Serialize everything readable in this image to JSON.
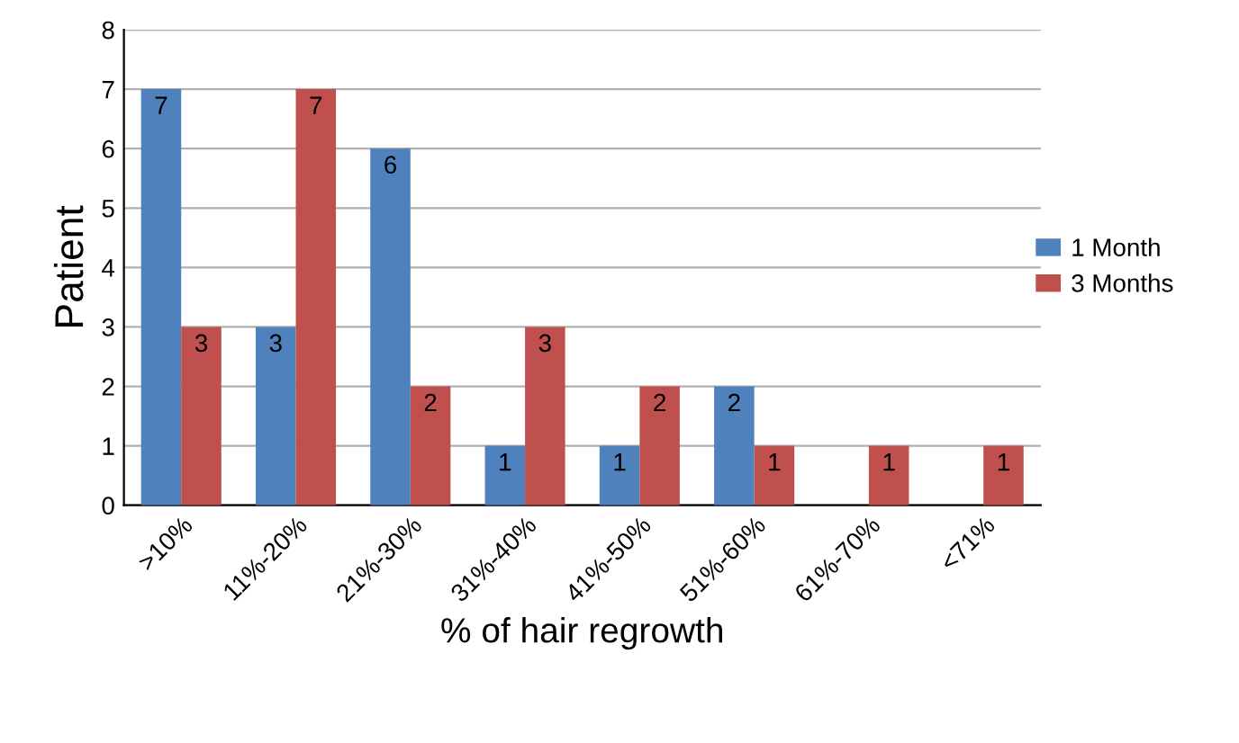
{
  "chart_data": {
    "type": "bar",
    "xlabel": "% of hair regrowth",
    "ylabel": "Patient",
    "categories": [
      ">10%",
      "11%-20%",
      "21%-30%",
      "31%-40%",
      "41%-50%",
      "51%-60%",
      "61%-70%",
      "<71%"
    ],
    "series": [
      {
        "name": "1 Month",
        "color": "#4f81bd",
        "values": [
          7,
          3,
          6,
          1,
          1,
          2,
          0,
          0
        ],
        "value_labels": [
          "7",
          "3",
          "6",
          "1",
          "1",
          "2",
          null,
          null
        ]
      },
      {
        "name": "3 Months",
        "color": "#c0504d",
        "values": [
          3,
          7,
          2,
          3,
          2,
          1,
          1,
          1
        ],
        "value_labels": [
          "3",
          "7",
          "2",
          "3",
          "2",
          "1",
          "1",
          "1"
        ]
      }
    ],
    "ylim": [
      0,
      8
    ],
    "yticks": [
      0,
      1,
      2,
      3,
      4,
      5,
      6,
      7,
      8
    ],
    "grid": "y",
    "legend": "right"
  }
}
